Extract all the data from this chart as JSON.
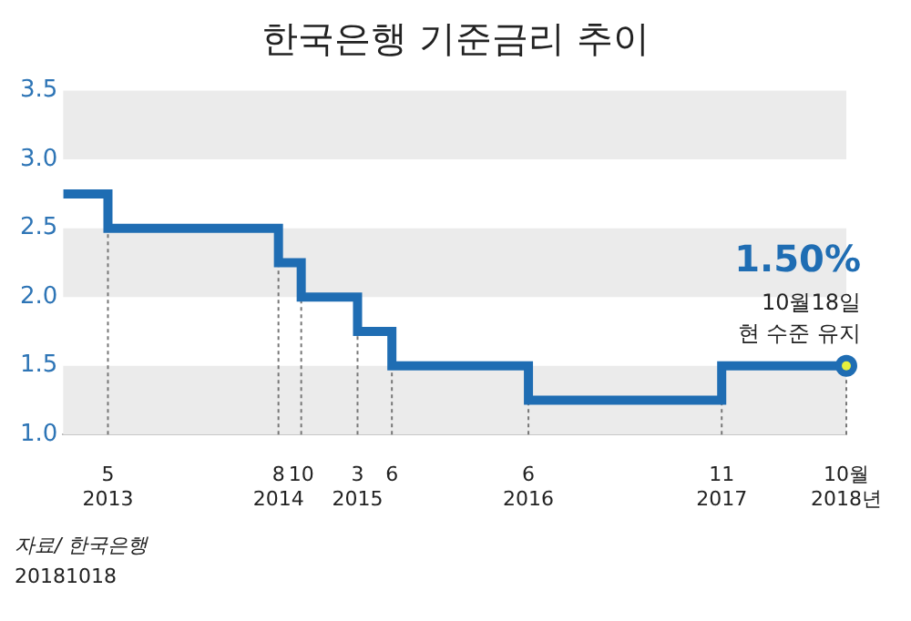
{
  "chart_data": {
    "type": "step",
    "title": "한국은행 기준금리 추이",
    "x": [
      "2013-01",
      "2013-05",
      "2014-08",
      "2014-10",
      "2015-03",
      "2015-06",
      "2016-06",
      "2017-11",
      "2018-10"
    ],
    "series": [
      {
        "color": "#1f6db3",
        "values": [
          2.75,
          2.5,
          2.25,
          2.0,
          1.75,
          1.5,
          1.25,
          1.5,
          1.5
        ]
      }
    ],
    "xticks": [
      {
        "value": "2013-05",
        "label": "5\n2013"
      },
      {
        "value": "2014-08",
        "label": "8\n2014"
      },
      {
        "value": "2014-10",
        "label": "10"
      },
      {
        "value": "2015-03",
        "label": "3\n2015"
      },
      {
        "value": "2015-06",
        "label": "6"
      },
      {
        "value": "2016-06",
        "label": "6\n2016"
      },
      {
        "value": "2017-11",
        "label": "11\n2017"
      },
      {
        "value": "2018-10",
        "label": "10월\n2018년"
      }
    ],
    "xlim": [
      "2013-01",
      "2018-10"
    ],
    "ylim": [
      1,
      3.5
    ],
    "yticks": [
      {
        "value": 1,
        "label": "1.0"
      },
      {
        "value": 1.5,
        "label": "1.5"
      },
      {
        "value": 2,
        "label": "2.0"
      },
      {
        "value": 2.5,
        "label": "2.5"
      },
      {
        "value": 3,
        "label": "3.0"
      },
      {
        "value": 3.5,
        "label": "3.5"
      }
    ],
    "bands": [
      {
        "axis": "y",
        "from": 1.0,
        "to": 1.5,
        "color": "#ebebeb"
      },
      {
        "axis": "y",
        "from": 2.0,
        "to": 2.5,
        "color": "#ebebeb"
      },
      {
        "axis": "y",
        "from": 3.0,
        "to": 3.5,
        "color": "#ebebeb"
      }
    ],
    "ref_lines": [
      {
        "axis": "x",
        "value": "2013-05",
        "color": "#777777",
        "line_style": "dotted"
      },
      {
        "axis": "x",
        "value": "2014-08",
        "color": "#777777",
        "line_style": "dotted"
      },
      {
        "axis": "x",
        "value": "2014-10",
        "color": "#777777",
        "line_style": "dotted"
      },
      {
        "axis": "x",
        "value": "2015-03",
        "color": "#777777",
        "line_style": "dotted"
      },
      {
        "axis": "x",
        "value": "2015-06",
        "color": "#777777",
        "line_style": "dotted"
      },
      {
        "axis": "x",
        "value": "2016-06",
        "color": "#777777",
        "line_style": "dotted"
      },
      {
        "axis": "x",
        "value": "2017-11",
        "color": "#777777",
        "line_style": "dotted"
      },
      {
        "axis": "x",
        "value": "2018-10",
        "color": "#777777",
        "line_style": "dotted"
      }
    ],
    "grid": false,
    "line_style": "solid",
    "marker": "none",
    "legend": false,
    "annotations": [
      {
        "text": "1.50%",
        "x": "2018-10",
        "y": 1.5
      },
      {
        "text": "10월18일",
        "x": "2018-10",
        "y": 1.5
      },
      {
        "text": "현 수준 유지",
        "x": "2018-10",
        "y": 1.5
      },
      "자료/ 한국은행",
      "20181018"
    ]
  }
}
